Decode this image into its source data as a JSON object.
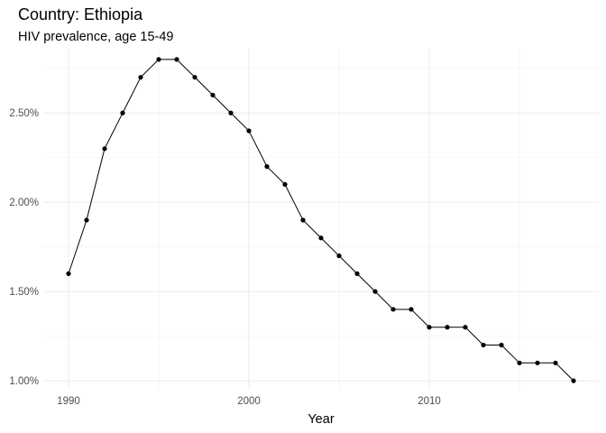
{
  "chart_data": {
    "type": "line",
    "title": "Country: Ethiopia",
    "subtitle": "HIV prevalence, age 15-49",
    "xlabel": "Year",
    "ylabel": "",
    "x": [
      1990,
      1991,
      1992,
      1993,
      1994,
      1995,
      1996,
      1997,
      1998,
      1999,
      2000,
      2001,
      2002,
      2003,
      2004,
      2005,
      2006,
      2007,
      2008,
      2009,
      2010,
      2011,
      2012,
      2013,
      2014,
      2015,
      2016,
      2017,
      2018
    ],
    "series": [
      {
        "values": [
          1.6,
          1.9,
          2.3,
          2.5,
          2.7,
          2.8,
          2.8,
          2.7,
          2.6,
          2.5,
          2.4,
          2.2,
          2.1,
          1.9,
          1.8,
          1.7,
          1.6,
          1.5,
          1.4,
          1.4,
          1.3,
          1.3,
          1.3,
          1.2,
          1.2,
          1.1,
          1.1,
          1.1,
          1.0
        ]
      }
    ],
    "xlim": [
      1988.6,
      2019.4
    ],
    "ylim": [
      0.95,
      2.86
    ],
    "x_ticks": [
      1990,
      2000,
      2010
    ],
    "x_tick_labels": [
      "1990",
      "2000",
      "2010"
    ],
    "y_ticks": [
      1.0,
      1.5,
      2.0,
      2.5
    ],
    "y_tick_labels": [
      "1.00%",
      "1.50%",
      "2.00%",
      "2.50%"
    ],
    "x_minor_ticks": [
      1995,
      2005,
      2015
    ],
    "y_minor_ticks": [
      1.25,
      1.75,
      2.25,
      2.75
    ],
    "grid": true,
    "legend": "none",
    "colors": {
      "line": "#000000",
      "point": "#000000",
      "grid_major": "#ebebeb",
      "grid_minor": "#f3f3f3",
      "tick_label": "#4d4d4d",
      "axis_title": "#000000"
    }
  }
}
